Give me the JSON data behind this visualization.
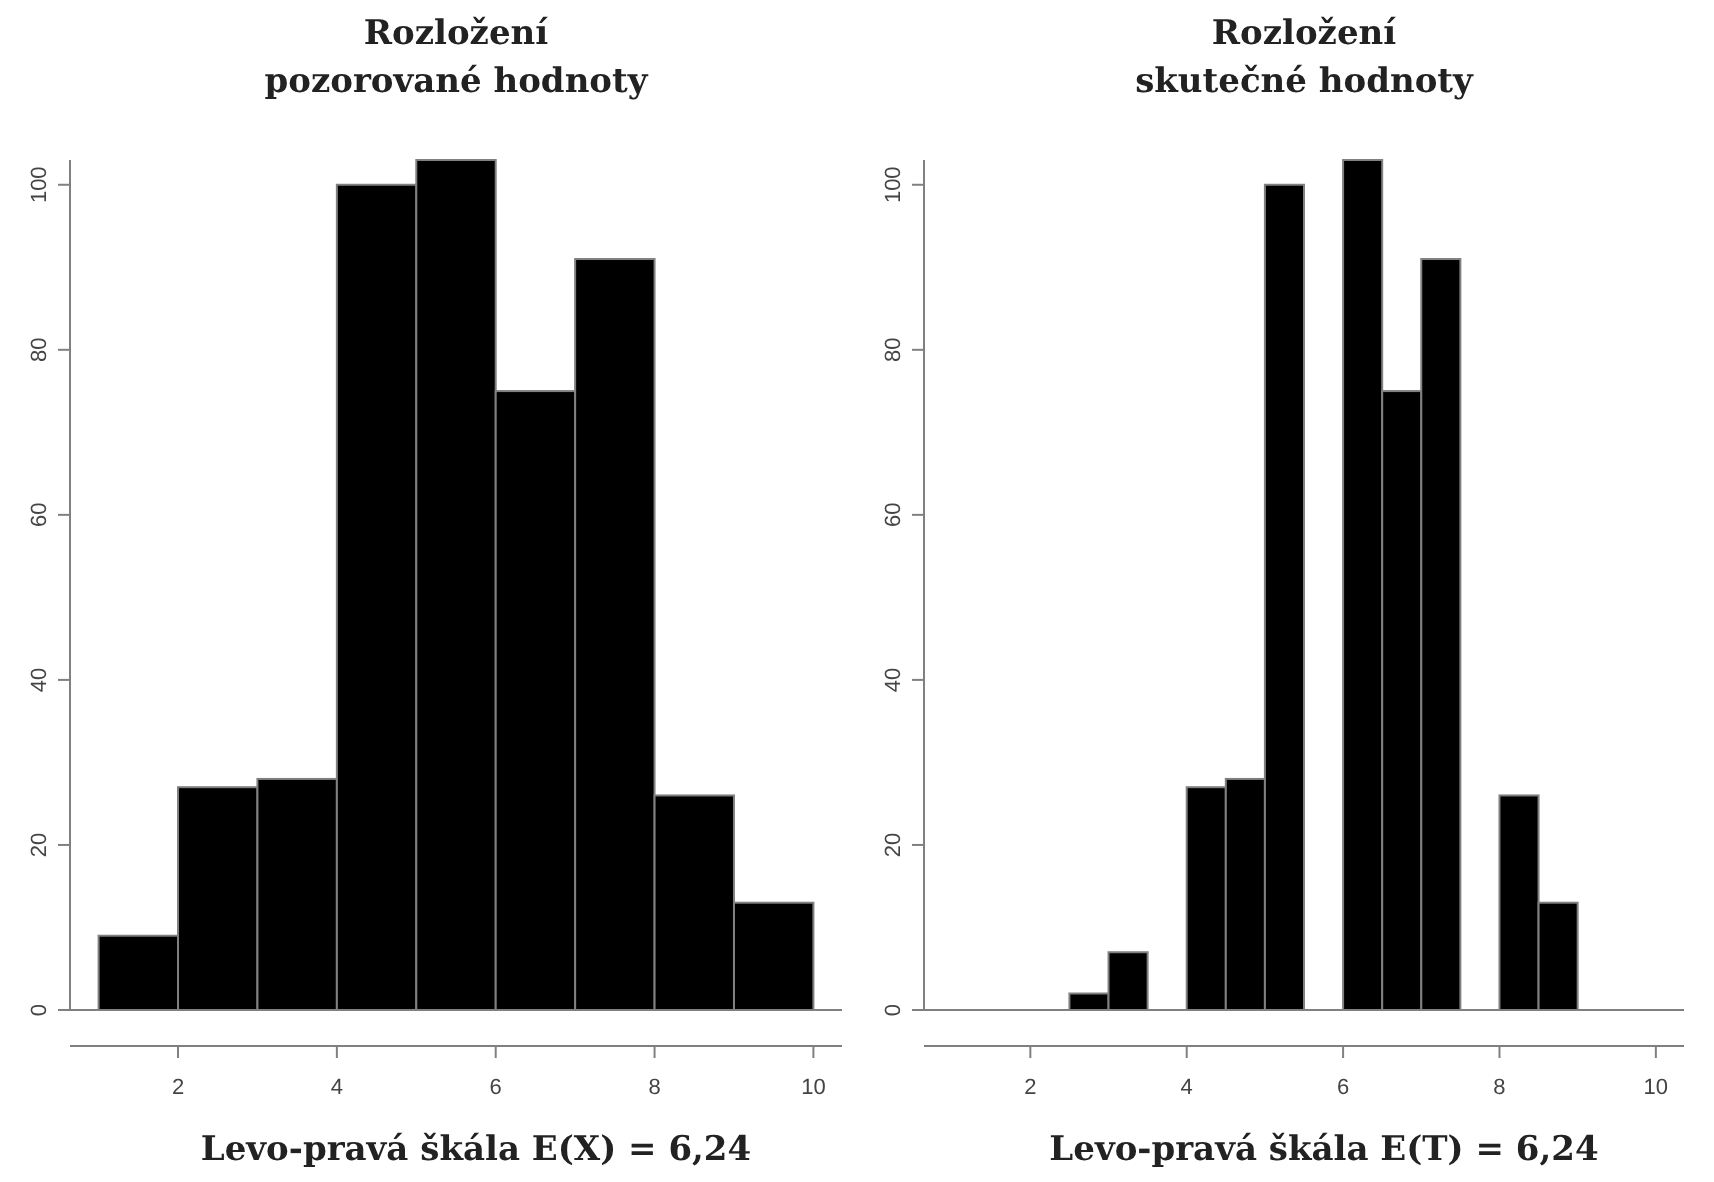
{
  "chart_data": [
    {
      "type": "histogram",
      "title": "Rozložení\npozorované hodnoty",
      "xlabel": "Levo-pravá škála E(X) = 6,24",
      "bins": [
        1,
        2,
        3,
        4,
        5,
        6,
        7,
        8,
        9,
        10
      ],
      "values": [
        9,
        27,
        28,
        100,
        103,
        75,
        91,
        26,
        13
      ],
      "color": "#000000",
      "xlim": [
        0.64,
        10.36
      ],
      "ylim": [
        0,
        103
      ],
      "xticks": [
        2,
        4,
        6,
        8,
        10
      ],
      "yticks": [
        0,
        20,
        40,
        60,
        80,
        100
      ],
      "grid": false
    },
    {
      "type": "histogram",
      "title": "Rozložení\nskutečné hodnoty",
      "xlabel": "Levo-pravá škála E(T) = 6,24",
      "bins": [
        2.5,
        3,
        3.5,
        4,
        4.5,
        5,
        5.5,
        6,
        6.5,
        7,
        7.5,
        8,
        8.5,
        9
      ],
      "values": [
        2,
        7,
        0,
        27,
        28,
        100,
        0,
        103,
        75,
        91,
        0,
        26,
        13
      ],
      "color": "#000000",
      "xlim": [
        0.64,
        10.36
      ],
      "ylim": [
        0,
        103
      ],
      "xticks": [
        2,
        4,
        6,
        8,
        10
      ],
      "yticks": [
        0,
        20,
        40,
        60,
        80,
        100
      ],
      "grid": false
    }
  ]
}
